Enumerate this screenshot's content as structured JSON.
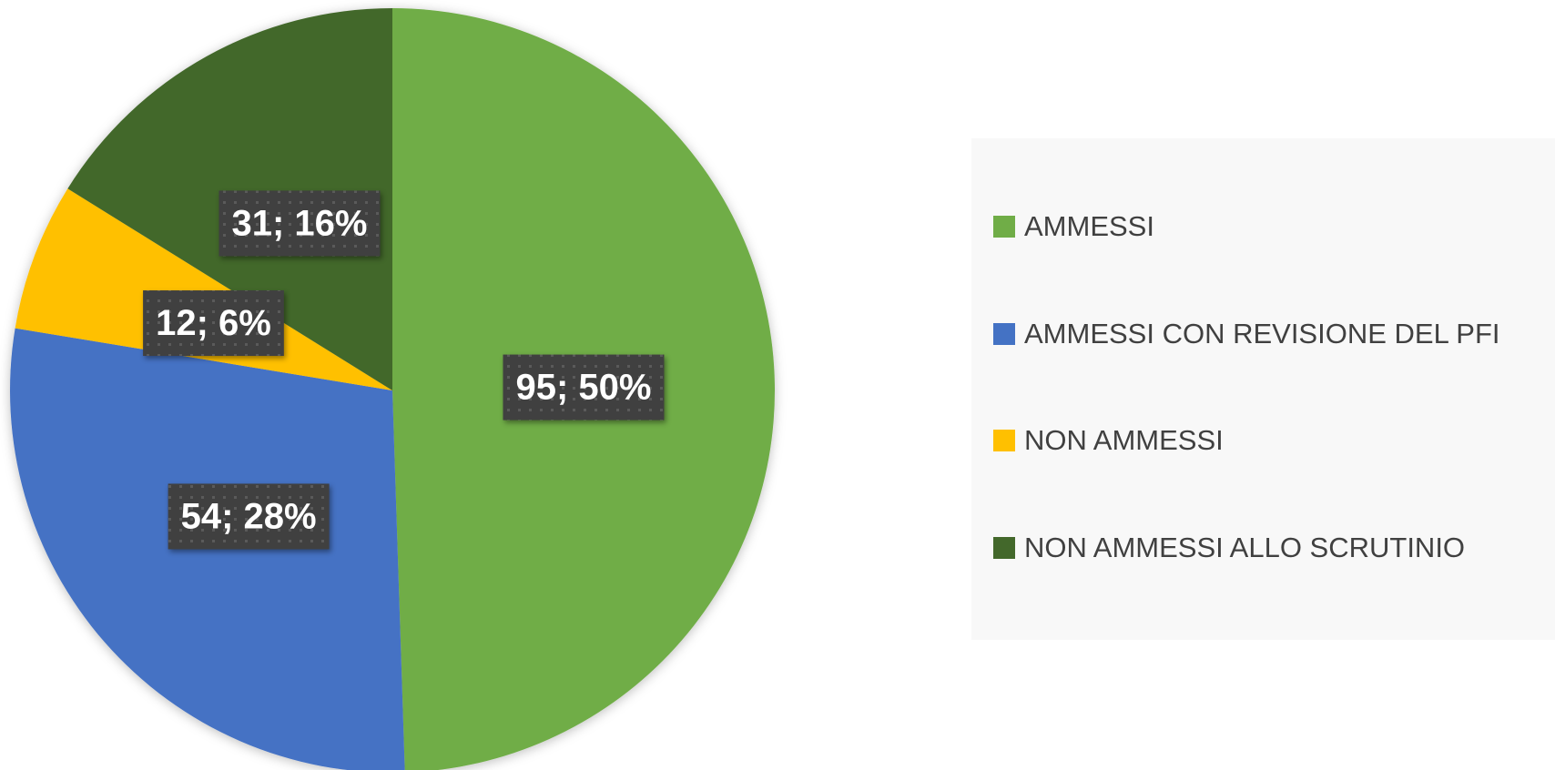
{
  "chart_data": {
    "type": "pie",
    "categories": [
      "AMMESSI",
      "AMMESSI CON REVISIONE DEL PFI",
      "NON AMMESSI",
      "NON AMMESSI ALLO SCRUTINIO"
    ],
    "values": [
      95,
      54,
      12,
      31
    ],
    "value_labels": [
      "95; 50%",
      "54; 28%",
      "12; 6%",
      "31; 16%"
    ],
    "colors": [
      "#70ad47",
      "#4472c4",
      "#ffc000",
      "#43682b"
    ],
    "legend": "right"
  }
}
